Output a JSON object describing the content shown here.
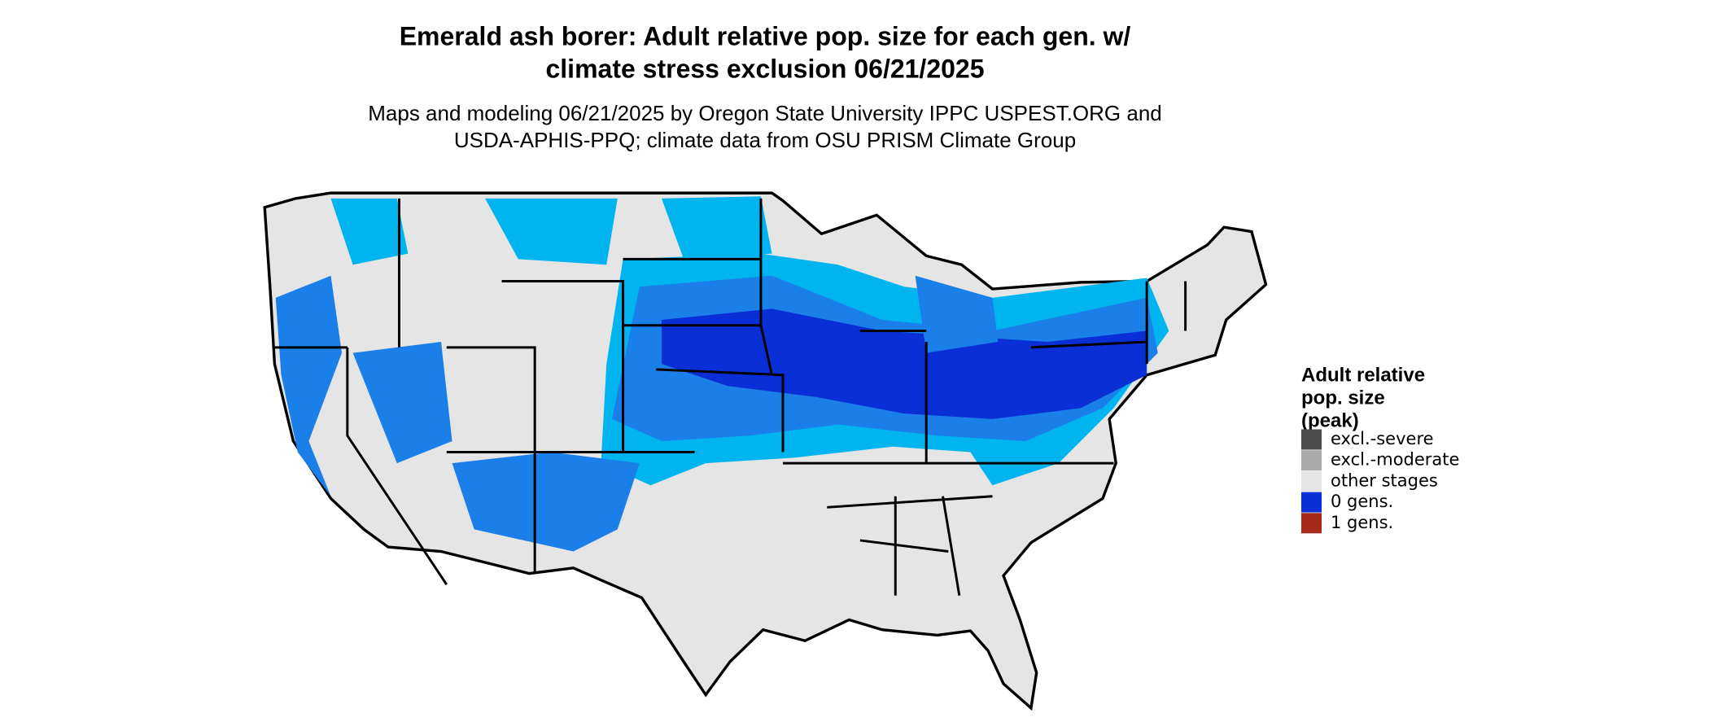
{
  "title": [
    "Emerald ash borer: Adult relative pop. size for each gen. w/",
    "climate stress exclusion 06/21/2025"
  ],
  "subtitle": [
    "Maps and modeling 06/21/2025 by Oregon State University IPPC USPEST.ORG and",
    "USDA-APHIS-PPQ; climate data from OSU PRISM Climate Group"
  ],
  "legend": {
    "title": [
      "Adult relative",
      "pop. size",
      "(peak)"
    ],
    "items": [
      {
        "label": "excl.-severe",
        "color": "#4d4d4d"
      },
      {
        "label": "excl.-moderate",
        "color": "#aaaaaa"
      },
      {
        "label": "other stages",
        "color": "#e5e5e5"
      },
      {
        "label": "0 gens.",
        "color": "#0a2fd6"
      },
      {
        "label": "1 gens.",
        "color": "#a52a1a"
      }
    ]
  }
}
